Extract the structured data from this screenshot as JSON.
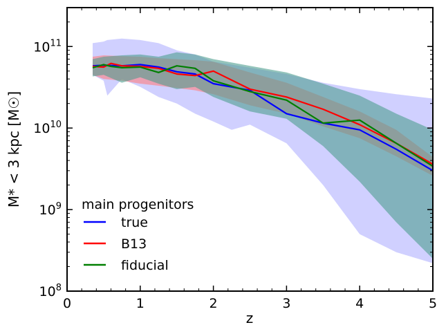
{
  "chart_data": {
    "type": "line",
    "xlabel": "z",
    "ylabel": "M* < 3 kpc [M☉]",
    "xlim": [
      0,
      5
    ],
    "ylim": [
      100000000.0,
      300000000000.0
    ],
    "y_scale": "log",
    "x_ticks": [
      0,
      1,
      2,
      3,
      4,
      5
    ],
    "x_tick_labels": [
      "0",
      "1",
      "2",
      "3",
      "4",
      "5"
    ],
    "y_ticks": [
      {
        "value": 100000000.0,
        "base": "10",
        "exp": "8"
      },
      {
        "value": 1000000000.0,
        "base": "10",
        "exp": "9"
      },
      {
        "value": 10000000000.0,
        "base": "10",
        "exp": "10"
      },
      {
        "value": 100000000000.0,
        "base": "10",
        "exp": "11"
      }
    ],
    "grid": false,
    "legend": {
      "placement": "bottom-left",
      "title": "main progenitors"
    },
    "series": [
      {
        "name": "true",
        "color": "#0000ff",
        "band_color": "#aaaaff",
        "x": [
          0.35,
          0.5,
          0.75,
          1.0,
          1.25,
          1.5,
          1.75,
          2.0,
          2.5,
          3.0,
          3.5,
          4.0,
          4.5,
          5.0
        ],
        "y": [
          58000000000.0,
          59000000000.0,
          58000000000.0,
          60000000000.0,
          56000000000.0,
          49000000000.0,
          46000000000.0,
          35000000000.0,
          29000000000.0,
          15000000000.0,
          11500000000.0,
          9500000000.0,
          5500000000.0,
          3000000000.0
        ],
        "band_x": [
          0.35,
          0.5,
          0.55,
          0.75,
          1.0,
          1.25,
          1.5,
          1.75,
          2.0,
          2.25,
          2.5,
          3.0,
          3.5,
          4.0,
          4.5,
          5.0
        ],
        "band_upper": [
          110000000000.0,
          115000000000.0,
          120000000000.0,
          125000000000.0,
          120000000000.0,
          110000000000.0,
          90000000000.0,
          80000000000.0,
          65000000000.0,
          60000000000.0,
          55000000000.0,
          46000000000.0,
          36000000000.0,
          30000000000.0,
          26000000000.0,
          23000000000.0
        ],
        "band_lower": [
          45000000000.0,
          38000000000.0,
          25000000000.0,
          40000000000.0,
          32000000000.0,
          24000000000.0,
          20000000000.0,
          15000000000.0,
          12000000000.0,
          9500000000.0,
          11000000000.0,
          6500000000.0,
          2000000000.0,
          500000000.0,
          300000000.0,
          220000000.0
        ]
      },
      {
        "name": "B13",
        "color": "#ff0000",
        "band_color": "#ff7f7f",
        "x": [
          0.35,
          0.5,
          0.6,
          0.75,
          1.0,
          1.25,
          1.5,
          1.75,
          2.0,
          2.5,
          3.0,
          3.5,
          4.0,
          4.5,
          5.0
        ],
        "y": [
          57000000000.0,
          56000000000.0,
          62000000000.0,
          58000000000.0,
          57000000000.0,
          54000000000.0,
          46000000000.0,
          44000000000.0,
          50000000000.0,
          30000000000.0,
          24000000000.0,
          17000000000.0,
          11000000000.0,
          6500000000.0,
          3600000000.0
        ],
        "band_x": [
          0.35,
          0.5,
          0.75,
          1.0,
          1.25,
          1.5,
          1.75,
          2.0,
          2.5,
          3.0,
          3.5,
          4.0,
          4.5,
          5.0
        ],
        "band_upper": [
          75000000000.0,
          78000000000.0,
          76000000000.0,
          75000000000.0,
          72000000000.0,
          70000000000.0,
          68000000000.0,
          65000000000.0,
          48000000000.0,
          36000000000.0,
          24000000000.0,
          16000000000.0,
          9500000000.0,
          4400000000.0
        ],
        "band_lower": [
          45000000000.0,
          40000000000.0,
          38000000000.0,
          35000000000.0,
          33000000000.0,
          31000000000.0,
          29000000000.0,
          26000000000.0,
          19000000000.0,
          15000000000.0,
          10500000000.0,
          7500000000.0,
          4500000000.0,
          2600000000.0
        ]
      },
      {
        "name": "fiducial",
        "color": "#007f00",
        "band_color": "#4f9f8f",
        "x": [
          0.35,
          0.5,
          0.6,
          0.75,
          1.0,
          1.25,
          1.5,
          1.75,
          2.0,
          2.5,
          3.0,
          3.5,
          4.0,
          4.5,
          5.0
        ],
        "y": [
          55000000000.0,
          60000000000.0,
          57000000000.0,
          55000000000.0,
          56000000000.0,
          48000000000.0,
          58000000000.0,
          54000000000.0,
          38000000000.0,
          28000000000.0,
          22000000000.0,
          11500000000.0,
          12500000000.0,
          6500000000.0,
          3400000000.0
        ],
        "band_x": [
          0.35,
          0.5,
          0.75,
          1.0,
          1.25,
          1.5,
          1.75,
          2.0,
          2.5,
          3.0,
          3.5,
          4.0,
          4.5,
          5.0
        ],
        "band_upper": [
          70000000000.0,
          75000000000.0,
          78000000000.0,
          80000000000.0,
          75000000000.0,
          85000000000.0,
          80000000000.0,
          70000000000.0,
          58000000000.0,
          48000000000.0,
          35000000000.0,
          25000000000.0,
          15000000000.0,
          9500000000.0
        ],
        "band_lower": [
          43000000000.0,
          45000000000.0,
          36000000000.0,
          42000000000.0,
          35000000000.0,
          30000000000.0,
          32000000000.0,
          24000000000.0,
          16000000000.0,
          13000000000.0,
          6000000000.0,
          2200000000.0,
          700000000.0,
          250000000.0
        ]
      }
    ]
  }
}
